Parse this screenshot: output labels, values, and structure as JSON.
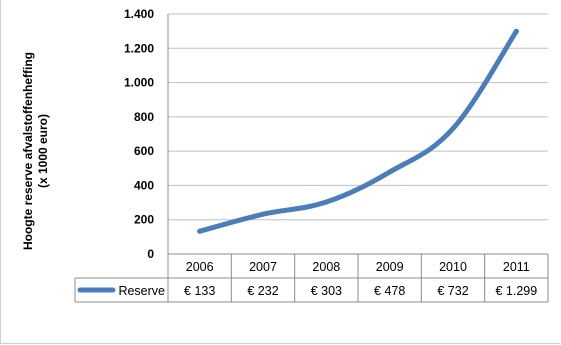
{
  "chart_data": {
    "type": "line",
    "categories": [
      "2006",
      "2007",
      "2008",
      "2009",
      "2010",
      "2011"
    ],
    "series": [
      {
        "name": "Reserve",
        "values": [
          133,
          232,
          303,
          478,
          732,
          1299
        ],
        "color": "#4a7ebb"
      }
    ],
    "ylabel": [
      "Hoogte reserve afvalstoffenheffing",
      "(x 1000 euro)"
    ],
    "ylim": [
      0,
      1400
    ],
    "yticks": [
      0,
      200,
      400,
      600,
      800,
      1000,
      1200,
      1400
    ],
    "ytick_labels": [
      "0",
      "200",
      "400",
      "600",
      "800",
      "1.000",
      "1.200",
      "1.400"
    ],
    "table_values": [
      "€ 133",
      "€ 232",
      "€ 303",
      "€ 478",
      "€ 732",
      "€ 1.299"
    ],
    "grid": true,
    "legend": "data-table"
  }
}
